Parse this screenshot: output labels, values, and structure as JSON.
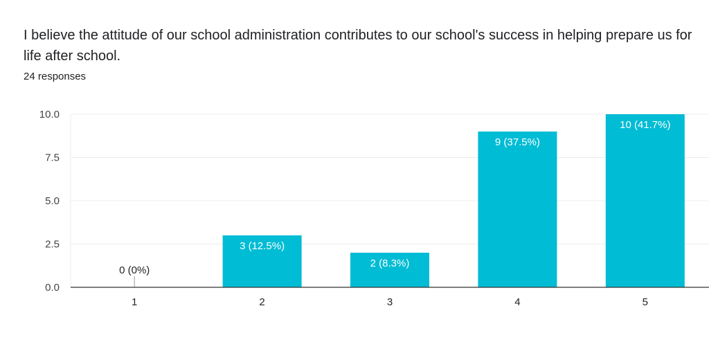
{
  "question": "I believe the attitude of our school administration contributes to our school's success in helping prepare us for life after school.",
  "response_count": "24 responses",
  "chart_data": {
    "type": "bar",
    "title": "I believe the attitude of our school administration contributes to our school's success in helping prepare us for life after school.",
    "categories": [
      "1",
      "2",
      "3",
      "4",
      "5"
    ],
    "values": [
      0,
      3,
      2,
      9,
      10
    ],
    "data_labels": [
      "0 (0%)",
      "3 (12.5%)",
      "2 (8.3%)",
      "9 (37.5%)",
      "10 (41.7%)"
    ],
    "yticks": [
      "0.0",
      "2.5",
      "5.0",
      "7.5",
      "10.0"
    ],
    "ylim": [
      0,
      10
    ],
    "grid": true,
    "color": "#00bcd4",
    "xlabel": "",
    "ylabel": ""
  }
}
